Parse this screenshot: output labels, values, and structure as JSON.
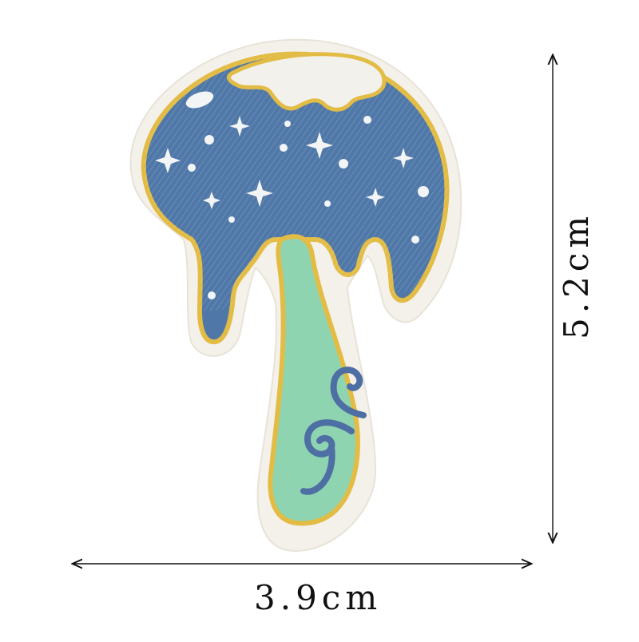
{
  "product": {
    "kind": "embroidered-mushroom-patch",
    "colors": {
      "border": "#f4f1ea",
      "outline": "#e2bc45",
      "cap": "#4f78a8",
      "cap_highlight": "#f3f1ec",
      "stars": "#f3f4f6",
      "stem": "#8fd4b0",
      "swirl": "#4e6fa3"
    }
  },
  "dimensions": {
    "width_label": "3.9cm",
    "height_label": "5.2cm",
    "line_color": "#111111"
  }
}
